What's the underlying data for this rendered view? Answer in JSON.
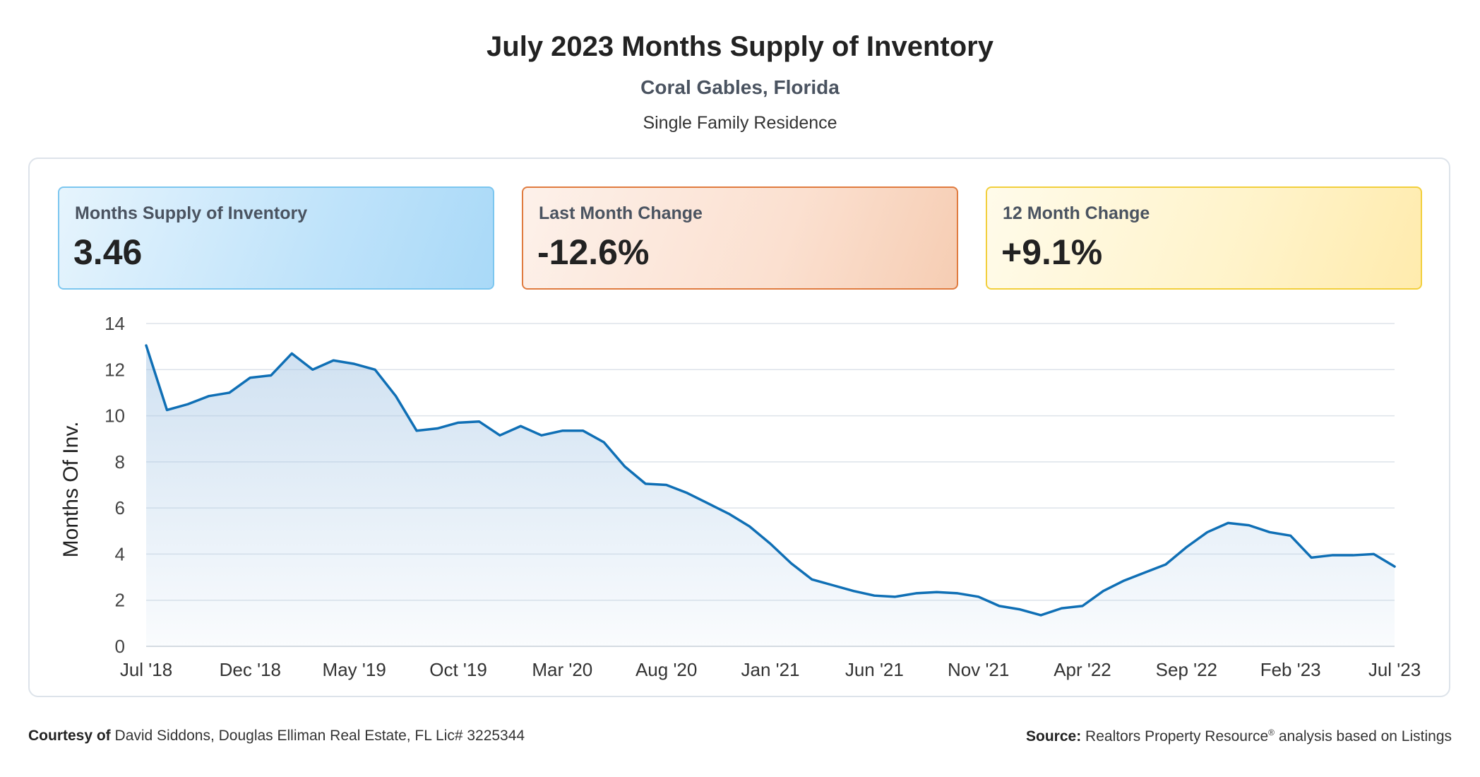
{
  "header": {
    "title": "July 2023 Months Supply of Inventory",
    "location": "Coral Gables, Florida",
    "property_type": "Single Family Residence"
  },
  "cards": [
    {
      "label": "Months Supply of Inventory",
      "value": "3.46",
      "color": "#7cc6ef"
    },
    {
      "label": "Last Month Change",
      "value": "-12.6%",
      "color": "#e07b3f"
    },
    {
      "label": "12 Month Change",
      "value": "+9.1%",
      "color": "#f2cf3c"
    }
  ],
  "footer": {
    "courtesy_prefix": "Courtesy of",
    "courtesy_text": "David Siddons, Douglas Elliman Real Estate, FL Lic# 3225344",
    "source_prefix": "Source:",
    "source_name": "Realtors Property Resource",
    "source_mark": "®",
    "source_suffix": "analysis based on Listings"
  },
  "chart_data": {
    "type": "area",
    "title": "",
    "xlabel": "",
    "ylabel": "Months Of Inv.",
    "ylim": [
      0,
      14
    ],
    "yticks": [
      0,
      2,
      4,
      6,
      8,
      10,
      12,
      14
    ],
    "grid": true,
    "line_color": "#0f6fb5",
    "fill_color": "#a8c8e6",
    "x_tick_labels": [
      "Jul '18",
      "Dec '18",
      "May '19",
      "Oct '19",
      "Mar '20",
      "Aug '20",
      "Jan '21",
      "Jun '21",
      "Nov '21",
      "Apr '22",
      "Sep '22",
      "Feb '23",
      "Jul '23"
    ],
    "x_tick_indices": [
      0,
      5,
      10,
      15,
      20,
      25,
      30,
      35,
      40,
      45,
      50,
      55,
      60
    ],
    "series": [
      {
        "values": [
          13.05,
          10.25,
          10.5,
          10.85,
          11.0,
          11.65,
          11.75,
          12.7,
          12.0,
          12.4,
          12.25,
          12.0,
          10.85,
          9.35,
          9.45,
          9.7,
          9.75,
          9.15,
          9.55,
          9.15,
          9.35,
          9.35,
          8.85,
          7.8,
          7.05,
          7.0,
          6.65,
          6.2,
          5.75,
          5.2,
          4.45,
          3.6,
          2.9,
          2.65,
          2.4,
          2.2,
          2.15,
          2.3,
          2.35,
          2.3,
          2.15,
          1.75,
          1.6,
          1.35,
          1.65,
          1.75,
          2.4,
          2.85,
          3.2,
          3.55,
          4.3,
          4.95,
          5.35,
          5.25,
          4.95,
          4.8,
          3.85,
          3.95,
          3.95,
          4.0,
          3.46
        ]
      }
    ]
  }
}
